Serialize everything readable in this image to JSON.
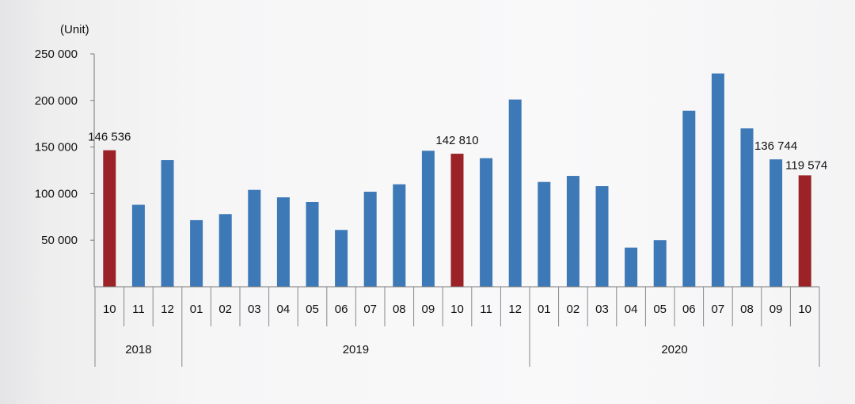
{
  "chart_data": {
    "type": "bar",
    "unit_label": "(Unit)",
    "title": "",
    "xlabel": "",
    "ylabel": "",
    "ylim": [
      0,
      250000
    ],
    "yticks": [
      {
        "value": 50000,
        "label": "50 000"
      },
      {
        "value": 100000,
        "label": "100 000"
      },
      {
        "value": 150000,
        "label": "150 000"
      },
      {
        "value": 200000,
        "label": "200 000"
      },
      {
        "value": 250000,
        "label": "250 000"
      }
    ],
    "grid": false,
    "legend": "none",
    "colors": {
      "default": "#3d78b7",
      "highlight": "#9b2226"
    },
    "categories": [
      "10",
      "11",
      "12",
      "01",
      "02",
      "03",
      "04",
      "05",
      "06",
      "07",
      "08",
      "09",
      "10",
      "11",
      "12",
      "01",
      "02",
      "03",
      "04",
      "05",
      "06",
      "07",
      "08",
      "09",
      "10"
    ],
    "years": [
      {
        "label": "2018",
        "start": 0,
        "end": 2
      },
      {
        "label": "2019",
        "start": 3,
        "end": 14
      },
      {
        "label": "2020",
        "start": 15,
        "end": 24
      }
    ],
    "values": [
      146536,
      88000,
      136000,
      71500,
      78000,
      104000,
      96000,
      91000,
      61000,
      102000,
      110000,
      146000,
      142810,
      138000,
      201000,
      112500,
      119000,
      108000,
      42000,
      50000,
      189000,
      229000,
      170000,
      136744,
      119574
    ],
    "highlight_indices": [
      0,
      12,
      24
    ],
    "data_labels": [
      {
        "index": 0,
        "text": "146 536"
      },
      {
        "index": 12,
        "text": "142 810"
      },
      {
        "index": 23,
        "text": "136 744"
      },
      {
        "index": 24,
        "text": "119 574"
      }
    ]
  }
}
